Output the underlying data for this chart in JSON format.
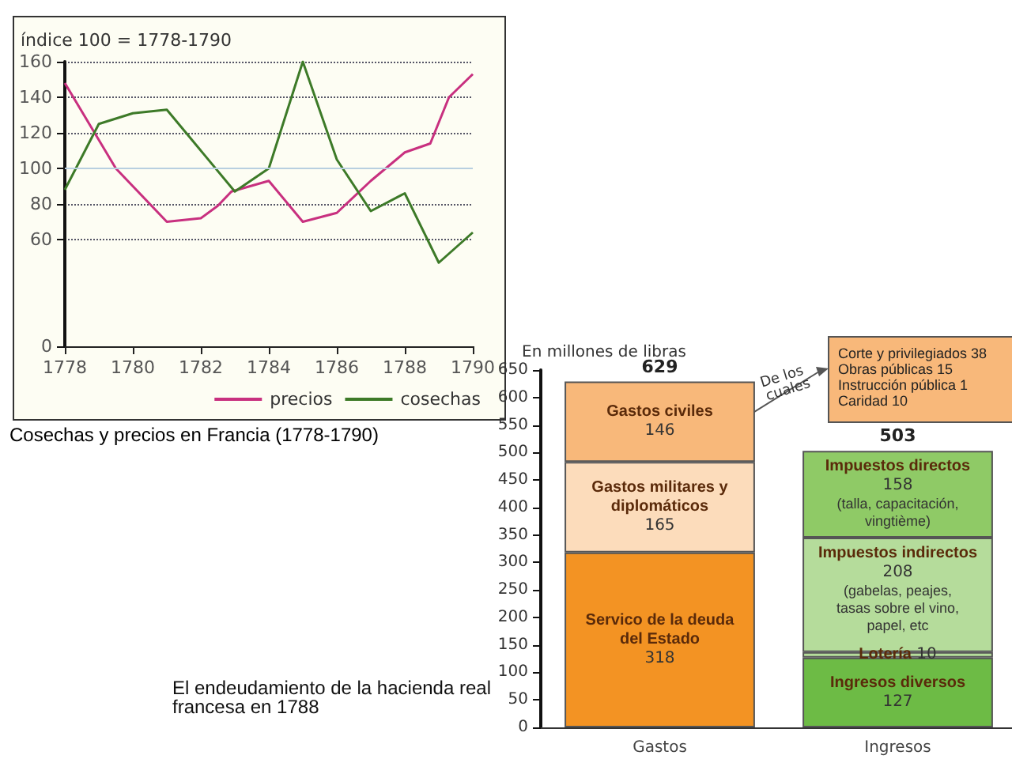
{
  "chart_data": [
    {
      "type": "line",
      "title": "Cosechas y precios en Francia (1778-1790)",
      "ylabel": "índice 100 = 1778-1790",
      "xlim": [
        1778,
        1790
      ],
      "xticks": [
        1778,
        1780,
        1782,
        1784,
        1786,
        1788,
        1790
      ],
      "ylim": [
        0,
        160
      ],
      "yticks": [
        0,
        60,
        80,
        100,
        120,
        140,
        160
      ],
      "grid": "y",
      "legend": "bottom right",
      "marker": "none",
      "line_style": "solid",
      "ref_lines": [
        {
          "axis": "y",
          "value": 100,
          "label": null,
          "color": "#b8cfe0"
        }
      ],
      "series": [
        {
          "name": "precios",
          "color": "#c8307f",
          "x": [
            1778,
            1779.5,
            1781,
            1782,
            1782.5,
            1782.9,
            1784,
            1785,
            1786,
            1787,
            1788,
            1788.75,
            1789.3,
            1790
          ],
          "values": [
            148,
            100,
            70,
            72,
            79,
            87,
            93,
            70,
            75,
            93,
            109,
            114,
            140,
            153
          ]
        },
        {
          "name": "cosechas",
          "color": "#3d7a28",
          "x": [
            1778,
            1779,
            1780,
            1781,
            1783,
            1784,
            1785,
            1786,
            1787,
            1788,
            1789,
            1790
          ],
          "values": [
            88,
            125,
            131,
            133,
            87,
            100,
            160,
            105,
            76,
            86,
            47,
            64
          ]
        }
      ]
    },
    {
      "type": "bar",
      "stacked": true,
      "title": "El endeudamiento de la hacienda real francesa en 1788",
      "ylabel": "En millones de libras",
      "categories": [
        "Gastos",
        "Ingresos"
      ],
      "ylim": [
        0,
        650
      ],
      "yticks": [
        0,
        50,
        100,
        150,
        200,
        250,
        300,
        350,
        400,
        450,
        500,
        550,
        600,
        650
      ],
      "totals": [
        "629",
        "503"
      ],
      "series": [
        {
          "name": "Servico de la deuda del Estado",
          "color": "#f39323",
          "values": [
            318,
            null
          ],
          "value_labels": [
            "318",
            null
          ]
        },
        {
          "name": "Gastos militares y diplomáticos",
          "color": "#fcdcbb",
          "values": [
            165,
            null
          ],
          "value_labels": [
            "165",
            null
          ]
        },
        {
          "name": "Gastos civiles",
          "color": "#f8b87a",
          "values": [
            146,
            null
          ],
          "value_labels": [
            "146",
            null
          ]
        },
        {
          "name": "Ingresos diversos",
          "color": "#6dbb45",
          "values": [
            null,
            127
          ],
          "value_labels": [
            null,
            "127"
          ]
        },
        {
          "name": "Lotería",
          "color": "#b5dc9b",
          "values": [
            null,
            10
          ],
          "value_labels": [
            null,
            "10"
          ]
        },
        {
          "name": "Impuestos indirectos",
          "color": "#b5dc9b",
          "values": [
            null,
            208
          ],
          "value_labels": [
            null,
            "208 (gabelas, peajes, tasas sobre el vino, papel, etc"
          ]
        },
        {
          "name": "Impuestos directos",
          "color": "#8fca66",
          "values": [
            null,
            158
          ],
          "value_labels": [
            null,
            "158 (talla, capacitación, vingtième)"
          ]
        }
      ],
      "annotations": [
        "De los cuales",
        "Corte y privilegiados 38",
        "Obras públicas 15",
        "Instrucción pública 1",
        "Caridad 10"
      ]
    }
  ]
}
